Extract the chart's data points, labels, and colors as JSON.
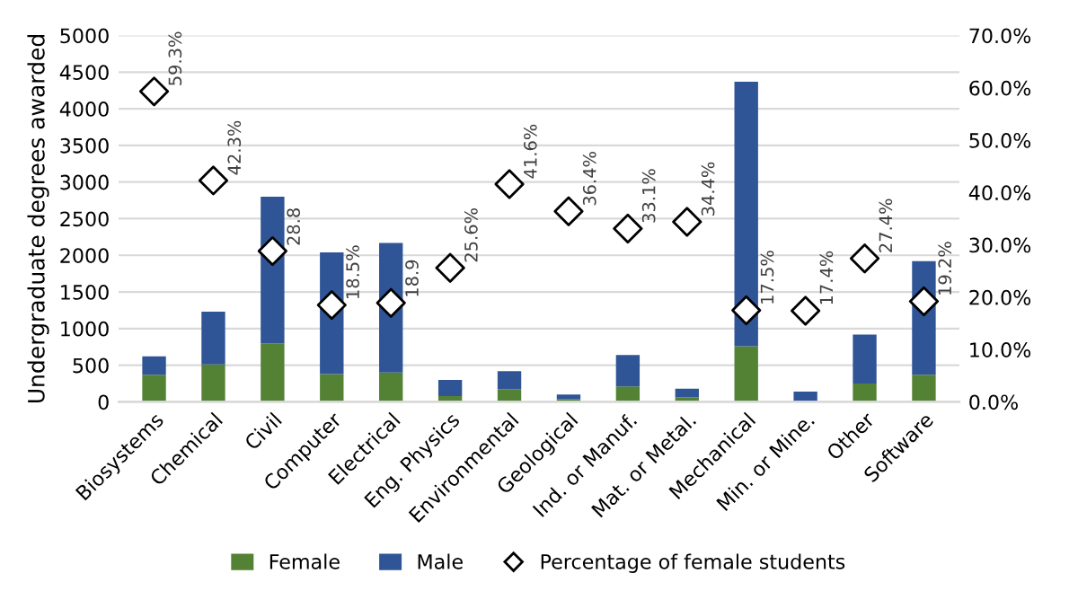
{
  "chart_data": {
    "type": "bar",
    "stacked": true,
    "ylabel": "Undergraduate degrees awarded",
    "categories": [
      "Biosystems",
      "Chemical",
      "Civil",
      "Computer",
      "Electrical",
      "Eng. Physics",
      "Environmental",
      "Geological",
      "Ind. or Manuf.",
      "Mat. or Metal.",
      "Mechanical",
      "Min. or Mine.",
      "Other",
      "Software"
    ],
    "series": [
      {
        "name": "Female",
        "color": "#548235",
        "values": [
          370,
          510,
          800,
          380,
          400,
          80,
          170,
          40,
          210,
          60,
          760,
          null,
          250,
          370
        ]
      },
      {
        "name": "Male",
        "color": "#2f5597",
        "values": [
          250,
          720,
          2000,
          1660,
          1770,
          220,
          250,
          60,
          430,
          120,
          3610,
          140,
          670,
          1550
        ]
      },
      {
        "name": "Percentage of female students",
        "type": "scatter",
        "axis": "y2",
        "marker": "diamond",
        "color": "#ffffff",
        "values": [
          59.3,
          42.3,
          28.8,
          18.5,
          18.9,
          25.6,
          41.6,
          36.4,
          33.1,
          34.4,
          17.5,
          17.4,
          27.4,
          19.2
        ],
        "value_labels": [
          "59.3%",
          "42.3%",
          "28.8",
          "18.5%",
          "18.9",
          "25.6%",
          "41.6%",
          "36.4%",
          "33.1%",
          "34.4%",
          "17.5%",
          "17.4%",
          "27.4%",
          "19.2%"
        ]
      }
    ],
    "ylim": [
      0,
      5000
    ],
    "yticks": [
      0,
      500,
      1000,
      1500,
      2000,
      2500,
      3000,
      3500,
      4000,
      4500,
      5000
    ],
    "y2lim": [
      0,
      70
    ],
    "y2ticks": [
      {
        "value": 0,
        "label": "0.0%"
      },
      {
        "value": 10,
        "label": "10.0%"
      },
      {
        "value": 20,
        "label": "20.0%"
      },
      {
        "value": 30,
        "label": "30.0%"
      },
      {
        "value": 40,
        "label": "40.0%"
      },
      {
        "value": 50,
        "label": "50.0%"
      },
      {
        "value": 60,
        "label": "60.0%"
      },
      {
        "value": 70,
        "label": "70.0%"
      }
    ],
    "grid": "y",
    "legend": "bottom"
  }
}
